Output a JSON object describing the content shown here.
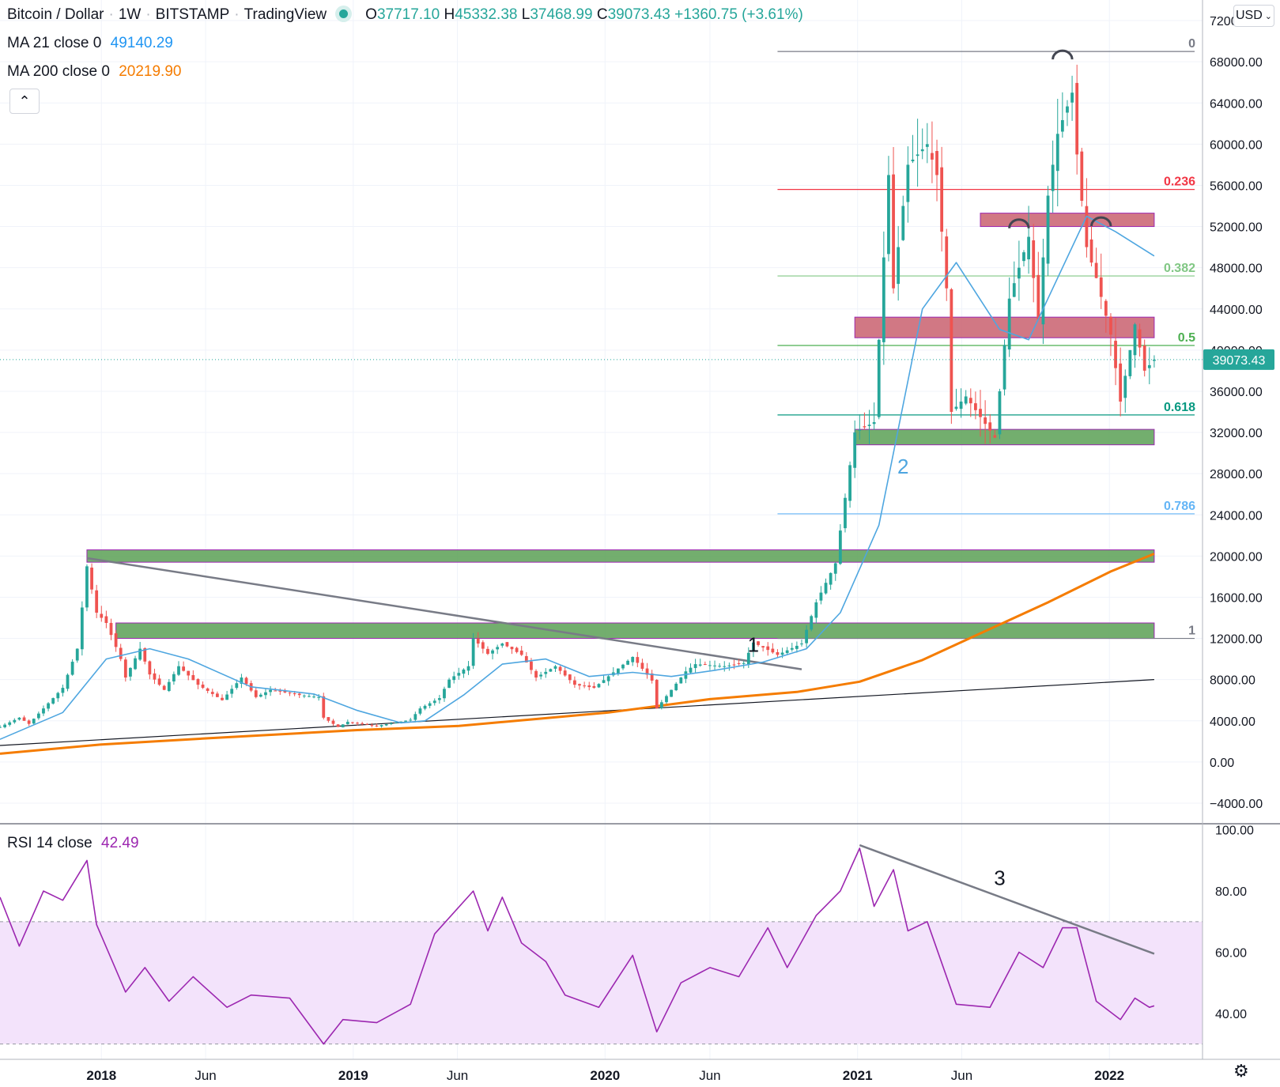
{
  "header": {
    "symbol": "Bitcoin / Dollar",
    "interval": "1W",
    "exchange": "BITSTAMP",
    "source": "TradingView",
    "open_label": "O",
    "open": "37717.10",
    "high_label": "H",
    "high": "45332.38",
    "low_label": "L",
    "low": "37468.99",
    "close_label": "C",
    "close": "39073.43",
    "change": "+1360.75 (+3.61%)"
  },
  "indicators": {
    "ma21_label": "MA 21 close 0",
    "ma21_value": "49140.29",
    "ma200_label": "MA 200 close 0",
    "ma200_value": "20219.90",
    "rsi_label": "RSI 14 close",
    "rsi_value": "42.49"
  },
  "toolbar": {
    "currency": "USD",
    "collapse_icon": "chevron-up-icon",
    "settings_icon": "gear-icon"
  },
  "colors": {
    "up": "#26a69a",
    "down": "#ef5350",
    "ma21": "#4ea6e0",
    "ma200": "#f57c00",
    "rsi": "#9c27b0",
    "rsi_band": "#f3e3fb",
    "green_zone": "#5aa055",
    "red_zone": "#c9606f",
    "last_price_tag": "#26a69a"
  },
  "chart_data": [
    {
      "type": "candlestick",
      "title": "Bitcoin / Dollar · 1W · BITSTAMP",
      "x_ticks": [
        "2018",
        "Jun",
        "2019",
        "Jun",
        "2020",
        "Jun",
        "2021",
        "Jun",
        "2022"
      ],
      "x_tick_dates": [
        "2018-01-01",
        "2018-06-01",
        "2019-01-01",
        "2019-06-01",
        "2020-01-01",
        "2020-06-01",
        "2021-01-01",
        "2021-06-01",
        "2022-01-01"
      ],
      "x_range": [
        "2017-08-07",
        "2022-05-16"
      ],
      "ylim": [
        -6000,
        74000
      ],
      "y_ticks": [
        -4000,
        0,
        4000,
        8000,
        12000,
        16000,
        20000,
        24000,
        28000,
        32000,
        36000,
        40000,
        44000,
        48000,
        52000,
        56000,
        60000,
        64000,
        68000,
        72000
      ],
      "y_tick_labels": [
        "−4000.00",
        "0.00",
        "4000.00",
        "8000.00",
        "12000.00",
        "16000.00",
        "20000.00",
        "24000.00",
        "28000.00",
        "32000.00",
        "36000.00",
        "40000.00",
        "44000.00",
        "48000.00",
        "52000.00",
        "56000.00",
        "60000.00",
        "64000.00",
        "68000.00",
        "72000.00"
      ],
      "last_price": 39073.43,
      "last_price_label": "39073.43",
      "price_keypoints": [
        [
          "2017-08-07",
          3400
        ],
        [
          "2017-09-04",
          4300
        ],
        [
          "2017-09-18",
          3700
        ],
        [
          "2017-10-16",
          5700
        ],
        [
          "2017-11-06",
          7200
        ],
        [
          "2017-11-27",
          11000
        ],
        [
          "2017-12-11",
          19000
        ],
        [
          "2017-12-25",
          14500
        ],
        [
          "2018-01-08",
          13500
        ],
        [
          "2018-01-29",
          10000
        ],
        [
          "2018-02-05",
          8200
        ],
        [
          "2018-02-26",
          11000
        ],
        [
          "2018-03-12",
          8500
        ],
        [
          "2018-04-02",
          7000
        ],
        [
          "2018-04-23",
          9300
        ],
        [
          "2018-05-21",
          7500
        ],
        [
          "2018-06-25",
          6000
        ],
        [
          "2018-07-23",
          8200
        ],
        [
          "2018-08-13",
          6300
        ],
        [
          "2018-09-03",
          7000
        ],
        [
          "2018-10-15",
          6500
        ],
        [
          "2018-11-12",
          6300
        ],
        [
          "2018-11-19",
          4300
        ],
        [
          "2018-12-10",
          3400
        ],
        [
          "2018-12-24",
          3900
        ],
        [
          "2019-02-04",
          3500
        ],
        [
          "2019-03-25",
          4100
        ],
        [
          "2019-04-08",
          5200
        ],
        [
          "2019-05-06",
          6200
        ],
        [
          "2019-05-20",
          8000
        ],
        [
          "2019-06-17",
          9300
        ],
        [
          "2019-06-24",
          12000
        ],
        [
          "2019-07-15",
          10500
        ],
        [
          "2019-08-05",
          11500
        ],
        [
          "2019-09-02",
          10400
        ],
        [
          "2019-09-23",
          8200
        ],
        [
          "2019-10-21",
          9300
        ],
        [
          "2019-11-18",
          7500
        ],
        [
          "2019-12-16",
          7200
        ],
        [
          "2020-01-13",
          8700
        ],
        [
          "2020-02-10",
          10200
        ],
        [
          "2020-03-09",
          7900
        ],
        [
          "2020-03-16",
          5200
        ],
        [
          "2020-04-06",
          7000
        ],
        [
          "2020-04-27",
          8800
        ],
        [
          "2020-05-11",
          9500
        ],
        [
          "2020-06-22",
          9300
        ],
        [
          "2020-07-20",
          9600
        ],
        [
          "2020-08-03",
          11600
        ],
        [
          "2020-09-07",
          10400
        ],
        [
          "2020-10-12",
          11500
        ],
        [
          "2020-11-02",
          15500
        ],
        [
          "2020-11-30",
          19300
        ],
        [
          "2020-12-28",
          32000
        ],
        [
          "2021-01-25",
          33000
        ],
        [
          "2021-02-15",
          57000
        ],
        [
          "2021-02-22",
          46000
        ],
        [
          "2021-03-15",
          58000
        ],
        [
          "2021-04-12",
          60000
        ],
        [
          "2021-04-26",
          57000
        ],
        [
          "2021-05-10",
          46000
        ],
        [
          "2021-05-17",
          34000
        ],
        [
          "2021-06-07",
          35500
        ],
        [
          "2021-07-19",
          31500
        ],
        [
          "2021-08-09",
          45000
        ],
        [
          "2021-09-06",
          51000
        ],
        [
          "2021-09-20",
          43000
        ],
        [
          "2021-10-04",
          55000
        ],
        [
          "2021-10-18",
          61000
        ],
        [
          "2021-11-08",
          65000
        ],
        [
          "2021-11-15",
          59000
        ],
        [
          "2021-11-29",
          50000
        ],
        [
          "2021-12-13",
          47000
        ],
        [
          "2022-01-03",
          41500
        ],
        [
          "2022-01-17",
          35000
        ],
        [
          "2022-02-07",
          42500
        ],
        [
          "2022-02-21",
          38000
        ],
        [
          "2022-03-07",
          39073
        ]
      ],
      "moving_averages": [
        {
          "name": "MA 21",
          "color": "#4ea6e0",
          "points": [
            [
              "2017-08-07",
              2200
            ],
            [
              "2017-11-06",
              4800
            ],
            [
              "2018-01-08",
              10000
            ],
            [
              "2018-03-12",
              11000
            ],
            [
              "2018-05-07",
              10000
            ],
            [
              "2018-08-06",
              7300
            ],
            [
              "2018-11-05",
              6600
            ],
            [
              "2019-01-07",
              5000
            ],
            [
              "2019-03-11",
              3800
            ],
            [
              "2019-04-15",
              4000
            ],
            [
              "2019-06-10",
              6500
            ],
            [
              "2019-08-05",
              9500
            ],
            [
              "2019-10-07",
              10000
            ],
            [
              "2019-12-09",
              8300
            ],
            [
              "2020-02-10",
              8700
            ],
            [
              "2020-04-06",
              8300
            ],
            [
              "2020-06-08",
              8900
            ],
            [
              "2020-08-17",
              9700
            ],
            [
              "2020-10-19",
              11000
            ],
            [
              "2020-12-07",
              14500
            ],
            [
              "2021-02-01",
              23000
            ],
            [
              "2021-04-05",
              44000
            ],
            [
              "2021-05-24",
              48500
            ],
            [
              "2021-07-26",
              42000
            ],
            [
              "2021-09-06",
              41000
            ],
            [
              "2021-10-18",
              47000
            ],
            [
              "2021-11-29",
              53000
            ],
            [
              "2022-01-10",
              51500
            ],
            [
              "2022-03-07",
              49140
            ]
          ]
        },
        {
          "name": "MA 200",
          "color": "#f57c00",
          "points": [
            [
              "2017-08-07",
              800
            ],
            [
              "2018-01-01",
              1700
            ],
            [
              "2018-06-04",
              2300
            ],
            [
              "2019-01-07",
              3100
            ],
            [
              "2019-06-03",
              3500
            ],
            [
              "2020-01-06",
              4800
            ],
            [
              "2020-06-01",
              6100
            ],
            [
              "2020-10-05",
              6800
            ],
            [
              "2021-01-04",
              7800
            ],
            [
              "2021-04-05",
              9900
            ],
            [
              "2021-07-05",
              12700
            ],
            [
              "2021-10-04",
              15500
            ],
            [
              "2022-01-03",
              18500
            ],
            [
              "2022-03-07",
              20220
            ]
          ]
        }
      ],
      "fib_levels": [
        {
          "ratio": "0",
          "price": 69000,
          "color": "#787b86"
        },
        {
          "ratio": "0.236",
          "price": 55600,
          "color": "#f23645"
        },
        {
          "ratio": "0.382",
          "price": 47200,
          "color": "#81c784"
        },
        {
          "ratio": "0.5",
          "price": 40450,
          "color": "#4caf50"
        },
        {
          "ratio": "0.618",
          "price": 33700,
          "color": "#089981"
        },
        {
          "ratio": "0.786",
          "price": 24100,
          "color": "#64b5f6"
        },
        {
          "ratio": "1",
          "price": 12000,
          "color": "#787b86"
        }
      ],
      "fib_start": "2020-09-07",
      "zones": [
        {
          "kind": "support",
          "from": "2017-12-11",
          "to": "2022-03-07",
          "top": 20600,
          "bottom": 19400
        },
        {
          "kind": "support",
          "from": "2018-01-22",
          "to": "2022-03-07",
          "top": 13500,
          "bottom": 12000
        },
        {
          "kind": "support",
          "from": "2020-12-28",
          "to": "2022-03-07",
          "top": 32300,
          "bottom": 30800
        },
        {
          "kind": "resistance",
          "from": "2020-12-28",
          "to": "2022-03-07",
          "top": 43200,
          "bottom": 41200
        },
        {
          "kind": "resistance",
          "from": "2021-06-28",
          "to": "2022-03-07",
          "top": 53300,
          "bottom": 52000
        }
      ],
      "trendlines": [
        {
          "from": [
            "2017-12-11",
            19800
          ],
          "to": [
            "2020-10-12",
            9000
          ],
          "color": "#787b86"
        },
        {
          "from": [
            "2017-08-07",
            1600
          ],
          "to": [
            "2022-03-07",
            8000
          ],
          "color": "#131722"
        }
      ],
      "arcs": [
        {
          "from": "2021-10-11",
          "to": "2021-11-08",
          "price": 69000
        },
        {
          "from": "2021-08-09",
          "to": "2021-09-06",
          "price": 52600
        },
        {
          "from": "2021-12-06",
          "to": "2022-01-03",
          "price": 52800
        }
      ],
      "annotations": [
        {
          "text": "1",
          "date": "2020-08-03",
          "price": 10700,
          "color": "#131722"
        },
        {
          "text": "2",
          "date": "2021-03-08",
          "price": 28000,
          "color": "#4ea6e0"
        }
      ]
    },
    {
      "type": "line",
      "title": "RSI 14 close",
      "ylim": [
        25,
        102
      ],
      "y_ticks": [
        40,
        60,
        80,
        100
      ],
      "y_tick_labels": [
        "40.00",
        "60.00",
        "80.00",
        "100.00"
      ],
      "band": [
        30,
        70
      ],
      "points": [
        [
          "2017-08-07",
          78
        ],
        [
          "2017-09-04",
          62
        ],
        [
          "2017-10-09",
          80
        ],
        [
          "2017-11-06",
          77
        ],
        [
          "2017-12-11",
          90
        ],
        [
          "2017-12-25",
          69
        ],
        [
          "2018-02-05",
          47
        ],
        [
          "2018-03-05",
          55
        ],
        [
          "2018-04-09",
          44
        ],
        [
          "2018-05-14",
          52
        ],
        [
          "2018-07-02",
          42
        ],
        [
          "2018-08-06",
          46
        ],
        [
          "2018-10-01",
          45
        ],
        [
          "2018-11-19",
          30
        ],
        [
          "2018-12-17",
          38
        ],
        [
          "2019-02-04",
          37
        ],
        [
          "2019-03-25",
          43
        ],
        [
          "2019-04-29",
          66
        ],
        [
          "2019-06-24",
          80
        ],
        [
          "2019-07-15",
          67
        ],
        [
          "2019-08-05",
          78
        ],
        [
          "2019-09-02",
          63
        ],
        [
          "2019-10-07",
          57
        ],
        [
          "2019-11-04",
          46
        ],
        [
          "2019-12-23",
          42
        ],
        [
          "2020-02-10",
          59
        ],
        [
          "2020-03-16",
          34
        ],
        [
          "2020-04-20",
          50
        ],
        [
          "2020-06-01",
          55
        ],
        [
          "2020-07-13",
          52
        ],
        [
          "2020-08-24",
          68
        ],
        [
          "2020-09-21",
          55
        ],
        [
          "2020-11-02",
          72
        ],
        [
          "2020-12-07",
          80
        ],
        [
          "2021-01-04",
          94
        ],
        [
          "2021-01-25",
          75
        ],
        [
          "2021-02-22",
          87
        ],
        [
          "2021-03-15",
          67
        ],
        [
          "2021-04-12",
          70
        ],
        [
          "2021-05-24",
          43
        ],
        [
          "2021-07-12",
          42
        ],
        [
          "2021-08-23",
          60
        ],
        [
          "2021-09-27",
          55
        ],
        [
          "2021-10-25",
          68
        ],
        [
          "2021-11-15",
          68
        ],
        [
          "2021-12-13",
          44
        ],
        [
          "2022-01-17",
          38
        ],
        [
          "2022-02-07",
          45
        ],
        [
          "2022-02-28",
          42
        ],
        [
          "2022-03-07",
          42.49
        ]
      ],
      "divergence_line": {
        "from": [
          "2021-01-04",
          95
        ],
        "to": [
          "2022-03-07",
          59.5
        ]
      },
      "annotations": [
        {
          "text": "3",
          "date": "2021-07-26",
          "price": 82,
          "color": "#131722"
        }
      ]
    }
  ]
}
